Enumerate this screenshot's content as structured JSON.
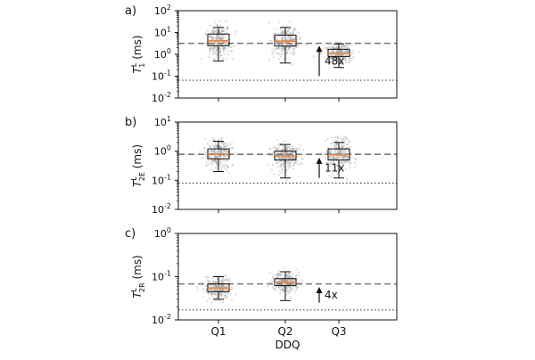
{
  "chart_data": [
    {
      "panel_label": "a)",
      "type": "box",
      "yscale": "log",
      "ylim": [
        0.01,
        100
      ],
      "ytick_values": [
        0.01,
        0.1,
        1,
        10,
        100
      ],
      "ytick_labels": [
        {
          "base": "10",
          "exp": "-2"
        },
        {
          "base": "10",
          "exp": "-1"
        },
        {
          "base": "10",
          "exp": "0"
        },
        {
          "base": "10",
          "exp": "1"
        },
        {
          "base": "10",
          "exp": "2"
        }
      ],
      "ylabel": {
        "main": "T",
        "sub": "1",
        "sup": "L",
        "unit": " (ms)"
      },
      "categories": [
        "Q1",
        "Q2",
        "Q3"
      ],
      "boxes": [
        {
          "whislo": 0.5,
          "q1": 2.5,
          "med": 4.2,
          "q3": 8.5,
          "whishi": 17,
          "spread_lo": 0.35,
          "spread_hi": 35
        },
        {
          "whislo": 0.4,
          "q1": 2.4,
          "med": 4.0,
          "q3": 7.6,
          "whishi": 17,
          "spread_lo": 0.3,
          "spread_hi": 40
        },
        {
          "whislo": 0.25,
          "q1": 0.8,
          "med": 1.1,
          "q3": 1.7,
          "whishi": 3.0,
          "spread_lo": 0.2,
          "spread_hi": 4.0
        }
      ],
      "dashed_line": 3.2,
      "dotted_line": 0.065,
      "arrow": {
        "from": 0.1,
        "to": 2.5,
        "label": "48x"
      }
    },
    {
      "panel_label": "b)",
      "type": "box",
      "yscale": "log",
      "ylim": [
        0.01,
        10
      ],
      "ytick_values": [
        0.01,
        0.1,
        1,
        10
      ],
      "ytick_labels": [
        {
          "base": "10",
          "exp": "-2"
        },
        {
          "base": "10",
          "exp": "-1"
        },
        {
          "base": "10",
          "exp": "0"
        },
        {
          "base": "10",
          "exp": "1"
        }
      ],
      "ylabel": {
        "main": "T",
        "sub": "2E",
        "sup": "L",
        "unit": " (ms)"
      },
      "categories": [
        "Q1",
        "Q2",
        "Q3"
      ],
      "boxes": [
        {
          "whislo": 0.2,
          "q1": 0.55,
          "med": 0.8,
          "q3": 1.2,
          "whishi": 2.2,
          "spread_lo": 0.15,
          "spread_hi": 3.0
        },
        {
          "whislo": 0.12,
          "q1": 0.5,
          "med": 0.7,
          "q3": 1.0,
          "whishi": 1.7,
          "spread_lo": 0.1,
          "spread_hi": 2.5
        },
        {
          "whislo": 0.12,
          "q1": 0.5,
          "med": 0.75,
          "q3": 1.2,
          "whishi": 2.0,
          "spread_lo": 0.1,
          "spread_hi": 3.5
        }
      ],
      "dashed_line": 0.78,
      "dotted_line": 0.08,
      "arrow": {
        "from": 0.12,
        "to": 0.6,
        "label": "11x"
      }
    },
    {
      "panel_label": "c)",
      "type": "box",
      "yscale": "log",
      "ylim": [
        0.01,
        1
      ],
      "ytick_values": [
        0.01,
        0.1,
        1
      ],
      "ytick_labels": [
        {
          "base": "10",
          "exp": "-2"
        },
        {
          "base": "10",
          "exp": "-1"
        },
        {
          "base": "10",
          "exp": "0"
        }
      ],
      "ylabel": {
        "main": "T",
        "sub": "2R",
        "sup": "L",
        "unit": " (ms)"
      },
      "xlabel": "DDQ",
      "categories": [
        "Q1",
        "Q2",
        "Q3"
      ],
      "boxes": [
        {
          "whislo": 0.03,
          "q1": 0.045,
          "med": 0.055,
          "q3": 0.068,
          "whishi": 0.1,
          "spread_lo": 0.025,
          "spread_hi": 0.2
        },
        {
          "whislo": 0.028,
          "q1": 0.062,
          "med": 0.075,
          "q3": 0.09,
          "whishi": 0.13,
          "spread_lo": 0.025,
          "spread_hi": 0.2
        },
        null
      ],
      "dashed_line": 0.068,
      "dotted_line": 0.017,
      "arrow": {
        "from": 0.025,
        "to": 0.058,
        "label": "4x"
      }
    }
  ],
  "colors": {
    "median": "#e8843c",
    "points": "#9a9a9a",
    "dashed": "#777777",
    "dotted": "#444444",
    "axis": "#111111"
  }
}
